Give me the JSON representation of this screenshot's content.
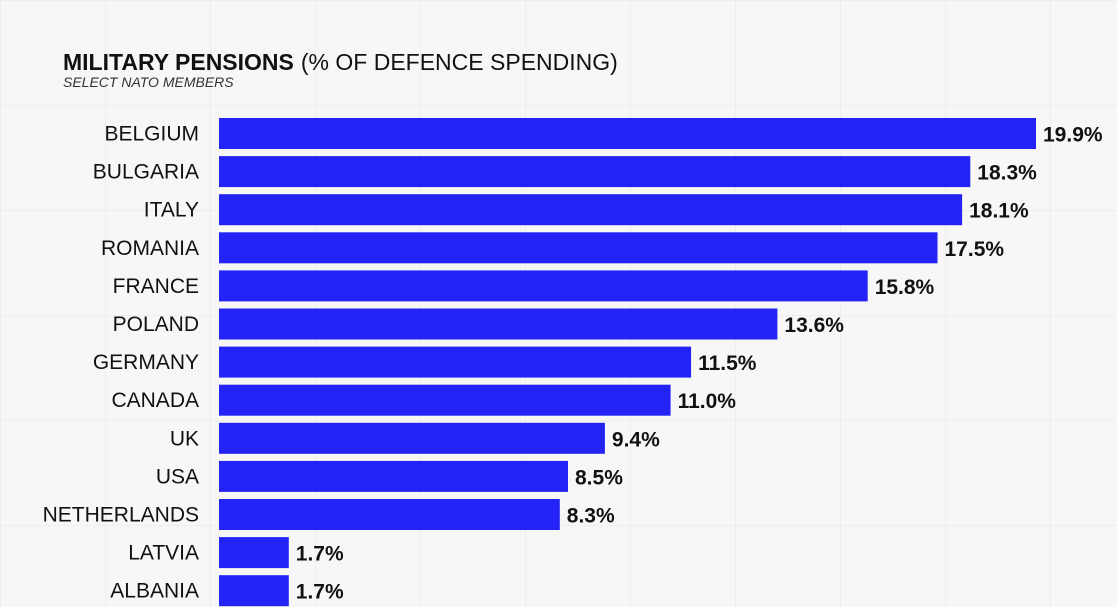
{
  "chart_data": {
    "type": "bar",
    "orientation": "horizontal",
    "title": "MILITARY PENSIONS",
    "title_suffix": "(% OF DEFENCE SPENDING)",
    "subtitle": "SELECT NATO MEMBERS",
    "xlabel": "",
    "ylabel": "",
    "xlim": [
      0,
      19.9
    ],
    "grid": false,
    "bar_color": "#2323f5",
    "categories": [
      "BELGIUM",
      "BULGARIA",
      "ITALY",
      "ROMANIA",
      "FRANCE",
      "POLAND",
      "GERMANY",
      "CANADA",
      "UK",
      "USA",
      "NETHERLANDS",
      "LATVIA",
      "ALBANIA"
    ],
    "values": [
      19.9,
      18.3,
      18.1,
      17.5,
      15.8,
      13.6,
      11.5,
      11.0,
      9.4,
      8.5,
      8.3,
      1.7,
      1.7
    ],
    "value_labels": [
      "19.9%",
      "18.3%",
      "18.1%",
      "17.5%",
      "15.8%",
      "13.6%",
      "11.5%",
      "11.0%",
      "9.4%",
      "8.5%",
      "8.3%",
      "1.7%",
      "1.7%"
    ]
  }
}
